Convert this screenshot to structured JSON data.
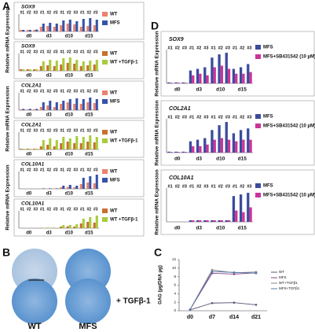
{
  "panel_labels": [
    "A",
    "B",
    "C",
    "D"
  ],
  "panel_b": {
    "treatment_label": "+ TGFβ-1",
    "column_labels": [
      "WT",
      "MFS"
    ]
  },
  "chart_data": [
    {
      "type": "bar",
      "gene": "SOX9",
      "ylabel": "Relative mRNA Expression",
      "groups": [
        "d0",
        "d3",
        "d10",
        "d15"
      ],
      "categories": [
        "#1",
        "#2",
        "#3",
        "#1",
        "#2",
        "#3",
        "#1",
        "#2",
        "#3",
        "#1",
        "#2",
        "#3"
      ],
      "ylim": [
        0,
        10
      ],
      "series": [
        {
          "name": "WT",
          "color": "#e9826e",
          "values": [
            1,
            1,
            1,
            3,
            3.5,
            3,
            4,
            5,
            4.5,
            3,
            3.5,
            4
          ]
        },
        {
          "name": "MFS",
          "color": "#3553a8",
          "values": [
            1,
            1,
            1.2,
            5,
            5.5,
            5,
            7,
            7.5,
            6.5,
            8,
            8.5,
            7.5
          ]
        }
      ]
    },
    {
      "type": "bar",
      "gene": "SOX9",
      "groups": [
        "d0",
        "d3",
        "d10",
        "d15"
      ],
      "categories": [
        "#1",
        "#2",
        "#3",
        "#1",
        "#2",
        "#3",
        "#1",
        "#2",
        "#3",
        "#1",
        "#2",
        "#3"
      ],
      "ylim": [
        0,
        10
      ],
      "series": [
        {
          "name": "WT",
          "color": "#c8702e",
          "values": [
            1,
            1,
            1,
            3,
            3.5,
            3,
            4,
            5,
            4.5,
            3,
            3.5,
            4
          ]
        },
        {
          "name": "WT +TGFβ-1",
          "color": "#a8cc3c",
          "values": [
            1,
            1,
            1,
            6,
            7,
            6.5,
            8,
            8.5,
            7,
            6,
            6.5,
            7
          ]
        }
      ]
    },
    {
      "type": "bar",
      "gene": "COL2A1",
      "ylabel": "Relative mRNA Expression",
      "groups": [
        "d0",
        "d3",
        "d10",
        "d15"
      ],
      "categories": [
        "#1",
        "#2",
        "#3",
        "#1",
        "#2",
        "#3",
        "#1",
        "#2",
        "#3",
        "#1",
        "#2",
        "#3"
      ],
      "ylim": [
        0,
        10
      ],
      "series": [
        {
          "name": "WT",
          "color": "#e9826e",
          "values": [
            0.5,
            0.5,
            0.5,
            2,
            3,
            2,
            4,
            5,
            4,
            4,
            5,
            4.5
          ]
        },
        {
          "name": "MFS",
          "color": "#3553a8",
          "values": [
            0.8,
            0.8,
            0.8,
            5,
            6,
            5,
            6,
            7,
            7.5,
            7,
            8,
            7
          ]
        }
      ]
    },
    {
      "type": "bar",
      "gene": "COL2A1",
      "groups": [
        "d0",
        "d3",
        "d10",
        "d15"
      ],
      "categories": [
        "#1",
        "#2",
        "#3",
        "#1",
        "#2",
        "#3",
        "#1",
        "#2",
        "#3",
        "#1",
        "#2",
        "#3"
      ],
      "ylim": [
        0,
        10
      ],
      "series": [
        {
          "name": "WT",
          "color": "#c8702e",
          "values": [
            0.5,
            0.5,
            0.5,
            2,
            3,
            2,
            4,
            5,
            4,
            4,
            5,
            4.5
          ]
        },
        {
          "name": "WT +TGFβ-1",
          "color": "#a8cc3c",
          "values": [
            0.5,
            0.5,
            0.5,
            6,
            7,
            6,
            8,
            7,
            8.5,
            8,
            9,
            8
          ]
        }
      ]
    },
    {
      "type": "bar",
      "gene": "COL10A1",
      "ylabel": "Relative mRNA Expression",
      "groups": [
        "d0",
        "d3",
        "d10",
        "d15"
      ],
      "categories": [
        "#1",
        "#2",
        "#3",
        "#1",
        "#2",
        "#3",
        "#1",
        "#2",
        "#3",
        "#1",
        "#2",
        "#3"
      ],
      "ylim": [
        0,
        10
      ],
      "series": [
        {
          "name": "WT",
          "color": "#e9826e",
          "values": [
            0,
            0,
            0,
            0.2,
            0.2,
            0.2,
            1,
            1.2,
            1,
            3,
            4,
            3.5
          ]
        },
        {
          "name": "MFS",
          "color": "#3553a8",
          "values": [
            0,
            0,
            0,
            0.3,
            0.3,
            0.3,
            2,
            2.5,
            2,
            7,
            8,
            9
          ]
        }
      ]
    },
    {
      "type": "bar",
      "gene": "COL10A1",
      "groups": [
        "d0",
        "d3",
        "d10",
        "d15"
      ],
      "categories": [
        "#1",
        "#2",
        "#3",
        "#1",
        "#2",
        "#3",
        "#1",
        "#2",
        "#3",
        "#1",
        "#2",
        "#3"
      ],
      "ylim": [
        0,
        10
      ],
      "series": [
        {
          "name": "WT",
          "color": "#c8702e",
          "values": [
            0,
            0,
            0,
            0.2,
            0.2,
            0.2,
            1,
            1.2,
            1,
            3,
            4,
            3.5
          ]
        },
        {
          "name": "WT +TGFβ-1",
          "color": "#a8cc3c",
          "values": [
            0,
            0,
            0,
            0.2,
            0.3,
            0.2,
            2,
            2,
            2.5,
            6,
            7,
            8
          ]
        }
      ]
    },
    {
      "type": "bar",
      "gene": "SOX9",
      "ylabel": "Relative mRNA Expression",
      "groups": [
        "d0",
        "d3",
        "d10",
        "d15"
      ],
      "categories": [
        "#1",
        "#2",
        "#3",
        "#1",
        "#2",
        "#3",
        "#1",
        "#2",
        "#3",
        "#1",
        "#2",
        "#3"
      ],
      "ylim": [
        0,
        10
      ],
      "series": [
        {
          "name": "MFS",
          "color": "#3a4c9c",
          "values": [
            0.3,
            0.3,
            0.3,
            4,
            4.5,
            5,
            8,
            9,
            9.5,
            4.5,
            5,
            6
          ]
        },
        {
          "name": "MFS+SB431542 (10 µM)",
          "color": "#cc3399",
          "values": [
            0.2,
            0.2,
            0.2,
            2.5,
            3,
            2.5,
            5,
            5.5,
            4.5,
            3,
            3,
            3.5
          ]
        }
      ]
    },
    {
      "type": "bar",
      "gene": "COL2A1",
      "ylabel": "Relative mRNA Expression",
      "groups": [
        "d0",
        "d3",
        "d10",
        "d15"
      ],
      "categories": [
        "#1",
        "#2",
        "#3",
        "#1",
        "#2",
        "#3",
        "#1",
        "#2",
        "#3",
        "#1",
        "#2",
        "#3"
      ],
      "ylim": [
        0,
        10
      ],
      "series": [
        {
          "name": "MFS",
          "color": "#3a4c9c",
          "values": [
            0.3,
            0.3,
            0.3,
            3.5,
            4,
            4.5,
            7,
            8.5,
            9.5,
            6,
            7,
            7.5
          ]
        },
        {
          "name": "MFS+SB431542 (10 µM)",
          "color": "#cc3399",
          "values": [
            0.2,
            0.2,
            0.2,
            2,
            2,
            2.5,
            4,
            4.5,
            4,
            3.5,
            4,
            4
          ]
        }
      ]
    },
    {
      "type": "bar",
      "gene": "COL10A1",
      "ylabel": "Relative mRNA Expression",
      "groups": [
        "d0",
        "d3",
        "d10",
        "d15"
      ],
      "categories": [
        "#1",
        "#2",
        "#3",
        "#1",
        "#2",
        "#3",
        "#1",
        "#2",
        "#3",
        "#1",
        "#2",
        "#3"
      ],
      "ylim": [
        0,
        10
      ],
      "series": [
        {
          "name": "MFS",
          "color": "#3a4c9c",
          "values": [
            0,
            0,
            0,
            0.5,
            0.5,
            0.5,
            0.5,
            0.5,
            0.5,
            8,
            8.5,
            9
          ]
        },
        {
          "name": "MFS+SB431542 (10 µM)",
          "color": "#cc3399",
          "values": [
            0,
            0,
            0,
            0.5,
            0.5,
            0.5,
            0.5,
            0.5,
            0.5,
            3.5,
            3,
            4.5
          ]
        }
      ]
    },
    {
      "type": "line",
      "ylabel": "GAG (µg/DNA µg)",
      "categories": [
        "d0",
        "d7",
        "d14",
        "d21"
      ],
      "ylim": [
        0,
        12
      ],
      "yticks": [
        0,
        2,
        4,
        6,
        8,
        10,
        12
      ],
      "series": [
        {
          "name": "WT",
          "color": "#555577",
          "values": [
            0.2,
            1.8,
            1.9,
            1.4
          ]
        },
        {
          "name": "MFS",
          "color": "#884488",
          "values": [
            0.3,
            8.8,
            8.6,
            8.9
          ]
        },
        {
          "name": "WT+TGFβ1",
          "color": "#888888",
          "values": [
            0.3,
            9.6,
            8.9,
            9.1
          ]
        },
        {
          "name": "MFS+TGFβ1",
          "color": "#5577aa",
          "values": [
            0.3,
            9.2,
            9.0,
            8.8
          ]
        }
      ]
    }
  ]
}
